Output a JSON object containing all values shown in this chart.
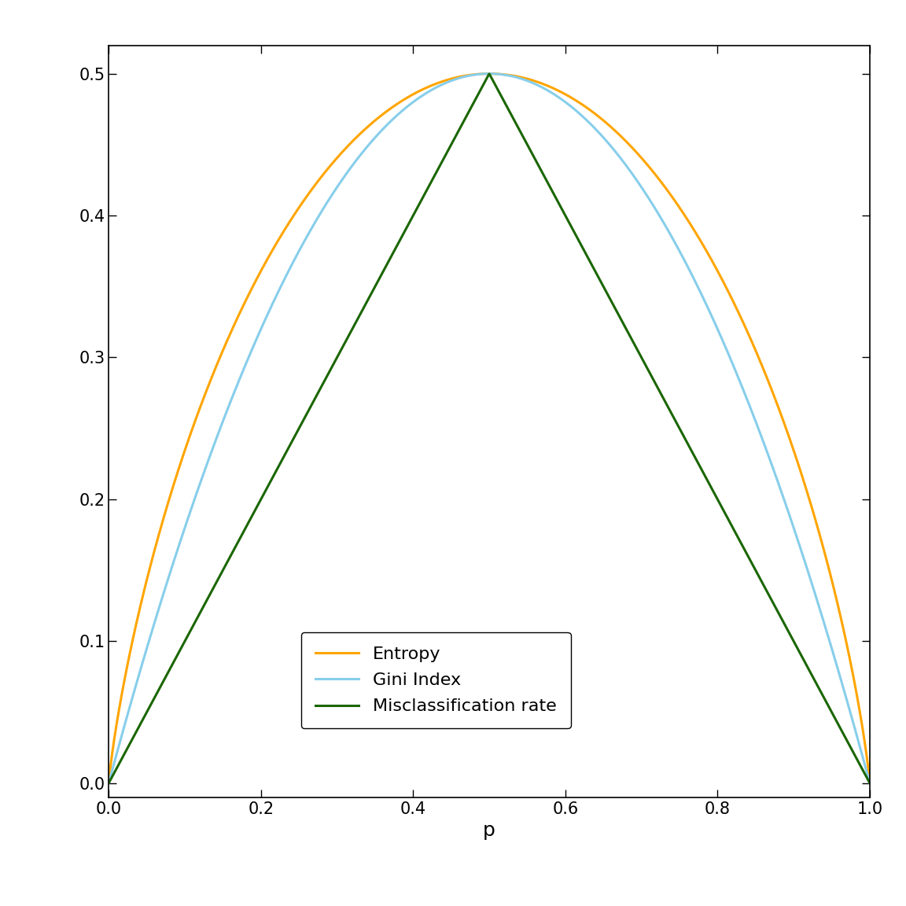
{
  "title": "",
  "xlabel": "p",
  "ylabel": "",
  "xlim": [
    0.0,
    1.0
  ],
  "ylim": [
    -0.01,
    0.52
  ],
  "xticks": [
    0.0,
    0.2,
    0.4,
    0.6,
    0.8,
    1.0
  ],
  "yticks": [
    0.0,
    0.1,
    0.2,
    0.3,
    0.4,
    0.5
  ],
  "entropy_color": "#FFA500",
  "gini_color": "#87CEEB",
  "misclass_color": "#1a6600",
  "line_width": 2.2,
  "legend_entries": [
    "Entropy",
    "Gini Index",
    "Misclassification rate"
  ],
  "background_color": "#ffffff",
  "font_size": 16,
  "xlabel_fontsize": 18,
  "tick_fontsize": 15
}
